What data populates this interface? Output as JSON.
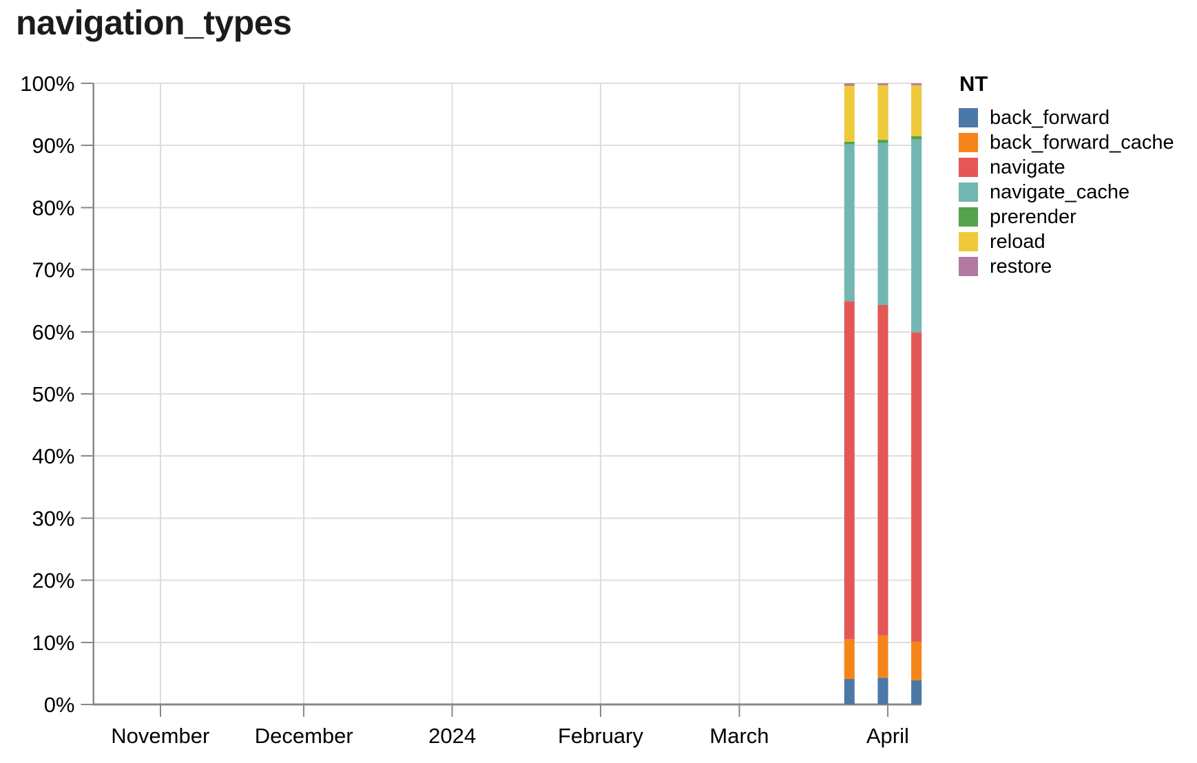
{
  "title": "navigation_types",
  "legend": {
    "title": "NT",
    "position": "right"
  },
  "style": {
    "background": "#ffffff",
    "grid_color": "#dddddd",
    "plot_border_color": "#dddddd",
    "axis_domain_color": "#888888",
    "tick_color": "#888888",
    "label_color": "#000000",
    "title_color": "#1c1c1c"
  },
  "chart_data": {
    "type": "bar",
    "variant": "stacked-normalized",
    "title": "navigation_types",
    "legend_title": "NT",
    "legend_position": "right",
    "grid": true,
    "xlabel": "",
    "ylabel": "",
    "x_axis": {
      "type": "time",
      "domain": [
        "2023-10-18",
        "2024-04-08"
      ],
      "ticks": [
        {
          "date": "2023-11-01",
          "label": "November"
        },
        {
          "date": "2023-12-01",
          "label": "December"
        },
        {
          "date": "2024-01-01",
          "label": "2024"
        },
        {
          "date": "2024-02-01",
          "label": "February"
        },
        {
          "date": "2024-03-01",
          "label": "March"
        },
        {
          "date": "2024-04-01",
          "label": "April"
        }
      ]
    },
    "y_axis": {
      "domain": [
        0,
        100
      ],
      "tick_step": 10,
      "tick_labels": [
        "0%",
        "10%",
        "20%",
        "30%",
        "40%",
        "50%",
        "60%",
        "70%",
        "80%",
        "90%",
        "100%"
      ]
    },
    "x": [
      "2024-03-24",
      "2024-03-31",
      "2024-04-07"
    ],
    "series": [
      {
        "name": "back_forward",
        "color": "#4C78A8",
        "values": [
          4.1,
          4.3,
          3.9
        ]
      },
      {
        "name": "back_forward_cache",
        "color": "#F58518",
        "values": [
          6.4,
          6.8,
          6.2
        ]
      },
      {
        "name": "navigate",
        "color": "#E45756",
        "values": [
          54.4,
          53.2,
          49.8
        ]
      },
      {
        "name": "navigate_cache",
        "color": "#72B7B2",
        "values": [
          25.3,
          26.1,
          31.1
        ]
      },
      {
        "name": "prerender",
        "color": "#54A24B",
        "values": [
          0.4,
          0.5,
          0.5
        ]
      },
      {
        "name": "reload",
        "color": "#EECA3B",
        "values": [
          9.0,
          8.8,
          8.2
        ]
      },
      {
        "name": "restore",
        "color": "#B279A2",
        "values": [
          0.4,
          0.3,
          0.3
        ]
      }
    ]
  }
}
